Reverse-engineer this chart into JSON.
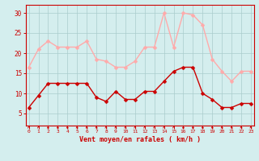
{
  "x": [
    0,
    1,
    2,
    3,
    4,
    5,
    6,
    7,
    8,
    9,
    10,
    11,
    12,
    13,
    14,
    15,
    16,
    17,
    18,
    19,
    20,
    21,
    22,
    23
  ],
  "wind_avg": [
    6.5,
    9.5,
    12.5,
    12.5,
    12.5,
    12.5,
    12.5,
    9.0,
    8.0,
    10.5,
    8.5,
    8.5,
    10.5,
    10.5,
    13.0,
    15.5,
    16.5,
    16.5,
    10.0,
    8.5,
    6.5,
    6.5,
    7.5,
    7.5
  ],
  "wind_gust": [
    16.5,
    21.0,
    23.0,
    21.5,
    21.5,
    21.5,
    23.0,
    18.5,
    18.0,
    16.5,
    16.5,
    18.0,
    21.5,
    21.5,
    30.0,
    21.5,
    30.0,
    29.5,
    27.0,
    18.5,
    15.5,
    13.0,
    15.5,
    15.5
  ],
  "avg_color": "#cc0000",
  "gust_color": "#ffaaaa",
  "bg_color": "#d4eeee",
  "grid_color": "#aacccc",
  "xlabel": "Vent moyen/en rafales ( km/h )",
  "ylabel_ticks": [
    5,
    10,
    15,
    20,
    25,
    30
  ],
  "ylim": [
    2,
    32
  ],
  "xlim": [
    -0.3,
    23.3
  ],
  "markersize": 2.5,
  "linewidth": 1.0
}
